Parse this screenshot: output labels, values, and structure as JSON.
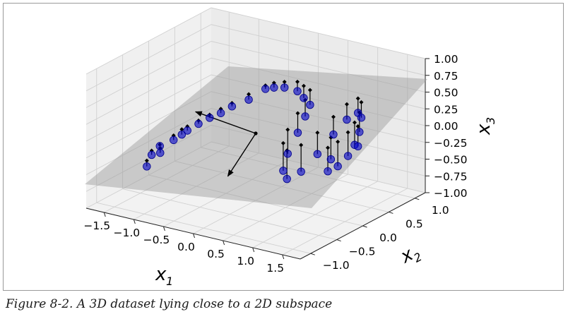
{
  "caption": "Figure 8-2. A 3D dataset lying close to a 2D subspace",
  "chart_data": {
    "type": "scatter",
    "subtype": "3d-scatter-with-plane",
    "title": "",
    "axes": {
      "x1": {
        "symbol": "x",
        "subscript": "1",
        "ticks": [
          "−1.5",
          "−1.0",
          "−0.5",
          "0.0",
          "0.5",
          "1.0",
          "1.5"
        ],
        "range": [
          -1.8,
          1.8
        ]
      },
      "x2": {
        "symbol": "x",
        "subscript": "2",
        "ticks": [
          "−1.0",
          "−0.5",
          "0.0",
          "0.5",
          "1.0"
        ],
        "range": [
          -1.2,
          1.2
        ]
      },
      "x3": {
        "symbol": "x",
        "subscript": "3",
        "ticks": [
          "1.00",
          "0.75",
          "0.50",
          "0.25",
          "0.00",
          "−0.25",
          "−0.50",
          "−0.75",
          "−1.00"
        ],
        "range": [
          -1.0,
          1.0
        ]
      }
    },
    "grid": true,
    "legend": "none",
    "colors": {
      "points": "#0000cc",
      "projections": "#5555bb",
      "plane": "#999999",
      "lines": "#000000"
    },
    "plane": {
      "shape": "plane fitted through the data",
      "color": "grey",
      "opacity": 0.45
    },
    "arrows": [
      {
        "name": "principal-component-1",
        "from": [
          0,
          0,
          0
        ],
        "to": [
          -1.1,
          0.1,
          0.05
        ]
      },
      {
        "name": "principal-component-2",
        "from": [
          0,
          0,
          0
        ],
        "to": [
          0.1,
          -0.65,
          -0.35
        ]
      }
    ],
    "points": [
      [
        -1.35,
        -0.55,
        -0.55
      ],
      [
        -1.4,
        -0.4,
        -0.45
      ],
      [
        -1.35,
        -0.3,
        -0.35
      ],
      [
        -1.3,
        -0.35,
        -0.42
      ],
      [
        -1.25,
        -0.15,
        -0.3
      ],
      [
        -1.2,
        -0.05,
        -0.25
      ],
      [
        -1.15,
        0.0,
        -0.2
      ],
      [
        -1.05,
        0.1,
        -0.12
      ],
      [
        -0.95,
        0.2,
        -0.05
      ],
      [
        -0.85,
        0.3,
        0.0
      ],
      [
        -0.75,
        0.4,
        0.08
      ],
      [
        -0.6,
        0.55,
        0.15
      ],
      [
        -0.45,
        0.7,
        0.28
      ],
      [
        -0.35,
        0.75,
        0.3
      ],
      [
        -0.2,
        0.78,
        0.32
      ],
      [
        0.0,
        0.8,
        0.3
      ],
      [
        0.15,
        0.75,
        0.25
      ],
      [
        0.3,
        0.7,
        0.2
      ],
      [
        0.35,
        0.55,
        0.1
      ],
      [
        0.4,
        0.35,
        -0.05
      ],
      [
        0.45,
        0.1,
        -0.25
      ],
      [
        0.55,
        -0.1,
        -0.4
      ],
      [
        0.7,
        -0.2,
        -0.45
      ],
      [
        0.85,
        -0.1,
        -0.35
      ],
      [
        0.95,
        0.1,
        -0.15
      ],
      [
        1.0,
        0.35,
        0.05
      ],
      [
        1.05,
        0.55,
        0.2
      ],
      [
        1.15,
        0.65,
        0.28
      ],
      [
        1.25,
        0.6,
        0.25
      ],
      [
        1.35,
        0.45,
        0.12
      ],
      [
        1.4,
        0.3,
        0.0
      ],
      [
        1.42,
        0.15,
        -0.1
      ],
      [
        1.38,
        0.0,
        -0.2
      ],
      [
        1.3,
        -0.1,
        -0.25
      ],
      [
        1.22,
        0.05,
        -0.15
      ],
      [
        1.5,
        0.25,
        0.02
      ]
    ]
  }
}
